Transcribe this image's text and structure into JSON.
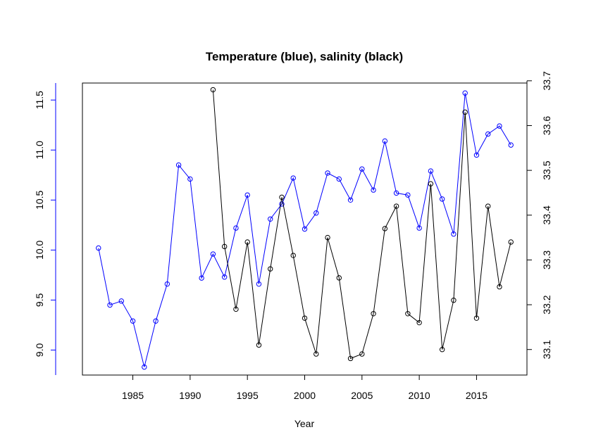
{
  "chart_data": {
    "type": "line",
    "title": "Temperature (blue), salinity (black)",
    "xlabel": "Year",
    "ylabel": "",
    "xlim": [
      1980.6,
      2019.4
    ],
    "x_ticks": [
      "1985",
      "1990",
      "1995",
      "2000",
      "2005",
      "2010",
      "2015"
    ],
    "y_left": {
      "lim": [
        8.75,
        11.67
      ],
      "ticks": [
        "9.0",
        "9.5",
        "10.0",
        "10.5",
        "11.0",
        "11.5"
      ],
      "color": "#0000ff"
    },
    "y_right": {
      "lim": [
        33.043,
        33.695
      ],
      "ticks": [
        "33.1",
        "33.2",
        "33.3",
        "33.4",
        "33.5",
        "33.6",
        "33.7"
      ],
      "color": "#000000"
    },
    "grid": false,
    "legend": "none",
    "series": [
      {
        "axis": "left",
        "color": "#0000ff",
        "x": [
          1982,
          1983,
          1984,
          1985,
          1986,
          1987,
          1988,
          1989,
          1990,
          1991,
          1992,
          1993,
          1994,
          1995,
          1996,
          1997,
          1998,
          1999,
          2000,
          2001,
          2002,
          2003,
          2004,
          2005,
          2006,
          2007,
          2008,
          2009,
          2010,
          2011,
          2012,
          2013,
          2014,
          2015,
          2016,
          2017,
          2018
        ],
        "values": [
          10.02,
          9.45,
          9.49,
          9.29,
          8.83,
          9.29,
          9.66,
          10.85,
          10.71,
          9.72,
          9.96,
          9.73,
          10.22,
          10.55,
          9.66,
          10.31,
          10.46,
          10.72,
          10.21,
          10.37,
          10.77,
          10.71,
          10.5,
          10.81,
          10.6,
          11.09,
          10.57,
          10.55,
          10.22,
          10.79,
          10.51,
          10.16,
          11.57,
          10.95,
          11.16,
          11.24,
          11.05
        ]
      },
      {
        "axis": "right",
        "color": "#000000",
        "x": [
          1992,
          1993,
          1994,
          1995,
          1996,
          1997,
          1998,
          1999,
          2000,
          2001,
          2002,
          2003,
          2004,
          2005,
          2006,
          2007,
          2008,
          2009,
          2010,
          2011,
          2012,
          2013,
          2014,
          2015,
          2016,
          2017,
          2018
        ],
        "values": [
          33.68,
          33.33,
          33.19,
          33.34,
          33.11,
          33.28,
          33.44,
          33.31,
          33.17,
          33.09,
          33.35,
          33.26,
          33.08,
          33.09,
          33.18,
          33.37,
          33.42,
          33.18,
          33.16,
          33.47,
          33.1,
          33.21,
          33.63,
          33.17,
          33.42,
          33.24,
          33.34
        ]
      }
    ]
  }
}
